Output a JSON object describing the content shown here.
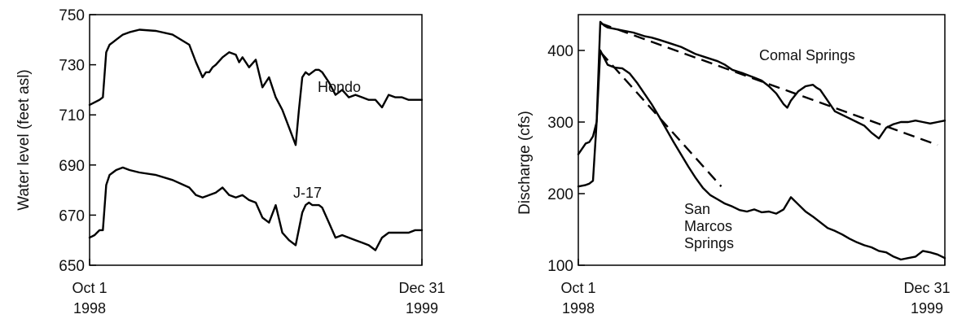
{
  "chart_data": [
    {
      "type": "line",
      "title": "",
      "ylabel": "Water level (feet asl)",
      "xlabel": "",
      "ylim": [
        650,
        750
      ],
      "yticks": [
        650,
        670,
        690,
        710,
        730,
        750
      ],
      "x_start_label": [
        "Oct 1",
        "1998"
      ],
      "x_end_label": [
        "Dec 31",
        "1999"
      ],
      "series": [
        {
          "name": "Hondo",
          "x": [
            0,
            1.5,
            3,
            4,
            5,
            6,
            7,
            8,
            9,
            10,
            12,
            15,
            20,
            25,
            30,
            32,
            34,
            35,
            36,
            37,
            38,
            40,
            42,
            44,
            45,
            46,
            48,
            50,
            52,
            54,
            56,
            58,
            60,
            62,
            63,
            64,
            65,
            66,
            67,
            68,
            69,
            70,
            72,
            74,
            76,
            78,
            80,
            82,
            84,
            86,
            88,
            90,
            92,
            94,
            96,
            98,
            100
          ],
          "values": [
            714,
            715,
            716,
            717,
            735,
            738,
            739,
            740,
            741,
            742,
            743,
            744,
            743.5,
            742,
            738,
            731,
            725,
            727,
            727,
            729,
            730,
            733,
            735,
            734,
            731,
            733,
            729,
            732,
            721,
            725,
            717,
            712,
            705,
            698,
            712,
            725,
            727,
            726,
            727,
            728,
            728,
            727,
            723,
            718,
            720,
            717,
            718,
            717,
            716,
            716,
            713,
            718,
            717,
            717,
            716,
            716,
            716
          ]
        },
        {
          "name": "J-17",
          "x": [
            0,
            1.5,
            3,
            4,
            5,
            6,
            7,
            8,
            10,
            12,
            15,
            20,
            25,
            30,
            32,
            34,
            36,
            38,
            40,
            42,
            44,
            46,
            48,
            50,
            52,
            54,
            56,
            58,
            60,
            62,
            64,
            65,
            66,
            67,
            68,
            69,
            70,
            72,
            74,
            76,
            78,
            80,
            82,
            84,
            86,
            88,
            90,
            92,
            94,
            96,
            98,
            100
          ],
          "values": [
            661,
            662,
            664,
            664,
            682,
            686,
            687,
            688,
            689,
            688,
            687,
            686,
            684,
            681,
            678,
            677,
            678,
            679,
            681,
            678,
            677,
            678,
            676,
            675,
            669,
            667,
            674,
            663,
            660,
            658,
            671,
            674,
            675,
            674,
            674,
            674,
            673,
            667,
            661,
            662,
            661,
            660,
            659,
            658,
            656,
            661,
            663,
            663,
            663,
            663,
            664,
            664
          ]
        }
      ],
      "annotations": [
        "Hondo",
        "J-17"
      ]
    },
    {
      "type": "line",
      "title": "",
      "ylabel": "Discharge   (cfs)",
      "xlabel": "",
      "ylim": [
        100,
        450
      ],
      "yticks": [
        100,
        200,
        300,
        400
      ],
      "x_start_label": [
        "Oct 1",
        "1998"
      ],
      "x_end_label": [
        "Dec 31",
        "1999"
      ],
      "series": [
        {
          "name": "Comal Springs",
          "x": [
            0,
            2,
            3,
            4,
            5,
            6,
            7,
            8,
            10,
            12,
            15,
            18,
            20,
            22,
            25,
            28,
            30,
            32,
            35,
            38,
            40,
            42,
            45,
            48,
            50,
            52,
            54,
            56,
            57,
            58,
            60,
            62,
            64,
            65,
            66,
            68,
            70,
            72,
            74,
            76,
            78,
            80,
            82,
            84,
            86,
            88,
            90,
            92,
            94,
            96,
            98,
            100
          ],
          "values": [
            255,
            270,
            272,
            280,
            300,
            440,
            435,
            432,
            430,
            428,
            425,
            420,
            418,
            415,
            410,
            405,
            400,
            395,
            390,
            385,
            380,
            373,
            368,
            362,
            358,
            350,
            340,
            325,
            320,
            330,
            343,
            350,
            352,
            348,
            345,
            330,
            315,
            310,
            305,
            300,
            295,
            285,
            277,
            292,
            297,
            300,
            300,
            302,
            300,
            298,
            300,
            302
          ]
        },
        {
          "name": "San Marcos Springs",
          "x": [
            0,
            2,
            3,
            4,
            5,
            6,
            7,
            8,
            10,
            12,
            14,
            16,
            18,
            20,
            22,
            24,
            26,
            28,
            30,
            32,
            34,
            36,
            38,
            40,
            42,
            44,
            46,
            48,
            50,
            52,
            54,
            56,
            58,
            60,
            62,
            64,
            66,
            68,
            70,
            72,
            74,
            76,
            78,
            80,
            82,
            84,
            86,
            88,
            90,
            92,
            94,
            96,
            98,
            100
          ],
          "values": [
            210,
            212,
            214,
            218,
            300,
            400,
            390,
            380,
            376,
            375,
            368,
            355,
            340,
            325,
            308,
            290,
            272,
            255,
            238,
            222,
            208,
            198,
            192,
            186,
            182,
            177,
            175,
            178,
            174,
            175,
            172,
            178,
            195,
            185,
            175,
            168,
            160,
            152,
            148,
            143,
            137,
            132,
            128,
            125,
            120,
            118,
            112,
            108,
            110,
            112,
            120,
            118,
            115,
            110
          ]
        }
      ],
      "trendlines": [
        {
          "series": "Comal Springs",
          "x": [
            6,
            98
          ],
          "values": [
            438,
            268
          ]
        },
        {
          "series": "San Marcos Springs",
          "x": [
            6,
            39
          ],
          "values": [
            398,
            210
          ]
        }
      ],
      "annotations": [
        "Comal Springs",
        "San",
        "Marcos",
        "Springs"
      ]
    }
  ]
}
